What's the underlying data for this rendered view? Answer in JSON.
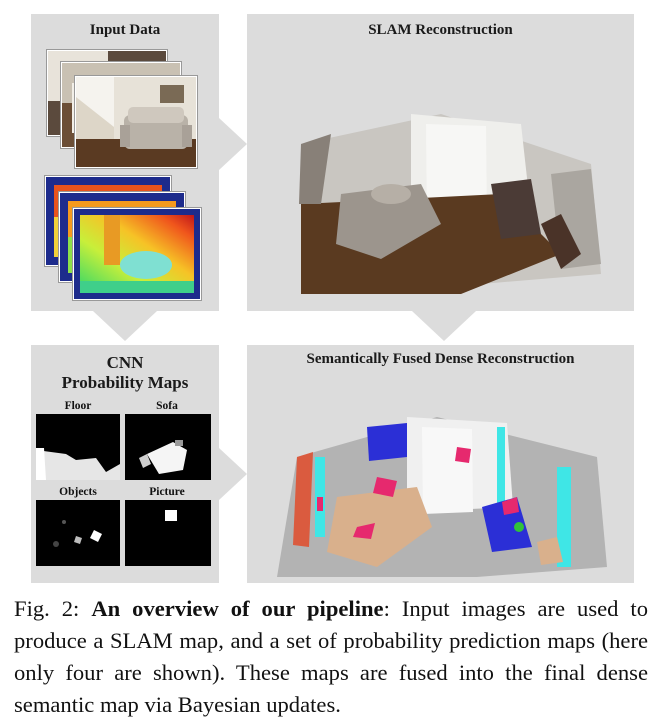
{
  "panels": {
    "input": {
      "title": "Input Data"
    },
    "slam": {
      "title": "SLAM Reconstruction"
    },
    "cnn": {
      "title_line1": "CNN",
      "title_line2": "Probability Maps"
    },
    "fused": {
      "title": "Semantically Fused Dense Reconstruction"
    }
  },
  "probability_maps": [
    {
      "label": "Floor"
    },
    {
      "label": "Sofa"
    },
    {
      "label": "Objects"
    },
    {
      "label": "Picture"
    }
  ],
  "caption": {
    "prefix": "Fig. 2: ",
    "bold": "An overview of our pipeline",
    "text": ": Input images are used to produce a SLAM map, and a set of probability prediction maps (here only four are shown). These maps are fused into the final dense semantic map via Bayesian updates."
  },
  "colors": {
    "panel_bg": "#dcdcdc",
    "sofa_label": "#d9b08c",
    "picture_label": "#e6296e",
    "objects_label": "#2b2fd6",
    "wall_label": "#3fe6e6",
    "floor_label": "#c8c8c8"
  }
}
